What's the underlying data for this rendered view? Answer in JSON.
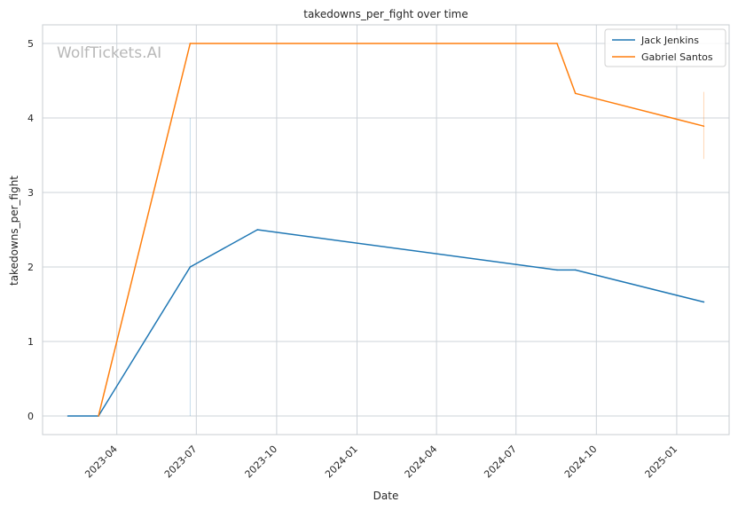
{
  "chart_data": {
    "type": "line",
    "title": "takedowns_per_fight over time",
    "xlabel": "Date",
    "ylabel": "takedowns_per_fight",
    "watermark": "WolfTickets.AI",
    "x_ticks": [
      "2023-04",
      "2023-07",
      "2023-10",
      "2024-01",
      "2024-04",
      "2024-07",
      "2024-10",
      "2025-01"
    ],
    "x_tick_dates": [
      "2023-04-01",
      "2023-07-01",
      "2023-10-01",
      "2024-01-01",
      "2024-04-01",
      "2024-07-01",
      "2024-10-01",
      "2025-01-01"
    ],
    "y_ticks": [
      0,
      1,
      2,
      3,
      4,
      5
    ],
    "xlim": [
      "2023-01-06",
      "2025-03-02"
    ],
    "ylim": [
      -0.25,
      5.25
    ],
    "grid": true,
    "legend_position": "top-right",
    "series": [
      {
        "name": "Jack Jenkins",
        "color": "#1f77b4",
        "x": [
          "2023-02-04",
          "2023-03-11",
          "2023-06-24",
          "2023-09-09",
          "2024-08-17",
          "2024-09-07",
          "2025-02-01"
        ],
        "y": [
          0,
          0,
          2.0,
          2.5,
          1.96,
          1.96,
          1.53
        ]
      },
      {
        "name": "Gabriel Santos",
        "color": "#ff7f0e",
        "x": [
          "2023-03-11",
          "2023-06-24",
          "2024-08-17",
          "2024-09-07",
          "2025-02-01"
        ],
        "y": [
          0,
          5.0,
          5.0,
          4.33,
          3.89
        ]
      }
    ]
  }
}
